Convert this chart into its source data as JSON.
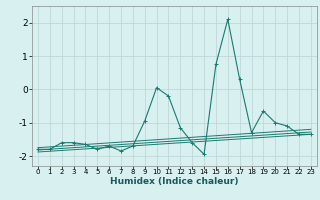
{
  "xlabel": "Humidex (Indice chaleur)",
  "bg_color": "#d8f0f0",
  "grid_color": "#c0d8d8",
  "line_color": "#1a7a6e",
  "xlim": [
    -0.5,
    23.5
  ],
  "ylim": [
    -2.3,
    2.5
  ],
  "yticks": [
    -2,
    -1,
    0,
    1,
    2
  ],
  "xticks": [
    0,
    1,
    2,
    3,
    4,
    5,
    6,
    7,
    8,
    9,
    10,
    11,
    12,
    13,
    14,
    15,
    16,
    17,
    18,
    19,
    20,
    21,
    22,
    23
  ],
  "series": [
    [
      0,
      -1.8
    ],
    [
      1,
      -1.8
    ],
    [
      2,
      -1.6
    ],
    [
      3,
      -1.6
    ],
    [
      4,
      -1.65
    ],
    [
      5,
      -1.8
    ],
    [
      6,
      -1.7
    ],
    [
      7,
      -1.85
    ],
    [
      8,
      -1.7
    ],
    [
      9,
      -0.95
    ],
    [
      10,
      0.05
    ],
    [
      11,
      -0.2
    ],
    [
      12,
      -1.15
    ],
    [
      13,
      -1.6
    ],
    [
      14,
      -1.95
    ],
    [
      15,
      0.75
    ],
    [
      16,
      2.1
    ],
    [
      17,
      0.3
    ],
    [
      18,
      -1.3
    ],
    [
      19,
      -0.65
    ],
    [
      20,
      -1.0
    ],
    [
      21,
      -1.1
    ],
    [
      22,
      -1.35
    ],
    [
      23,
      -1.35
    ]
  ],
  "trend_lines": [
    [
      [
        0,
        -1.75
      ],
      [
        23,
        -1.2
      ]
    ],
    [
      [
        0,
        -1.82
      ],
      [
        23,
        -1.28
      ]
    ],
    [
      [
        0,
        -1.88
      ],
      [
        23,
        -1.35
      ]
    ]
  ]
}
